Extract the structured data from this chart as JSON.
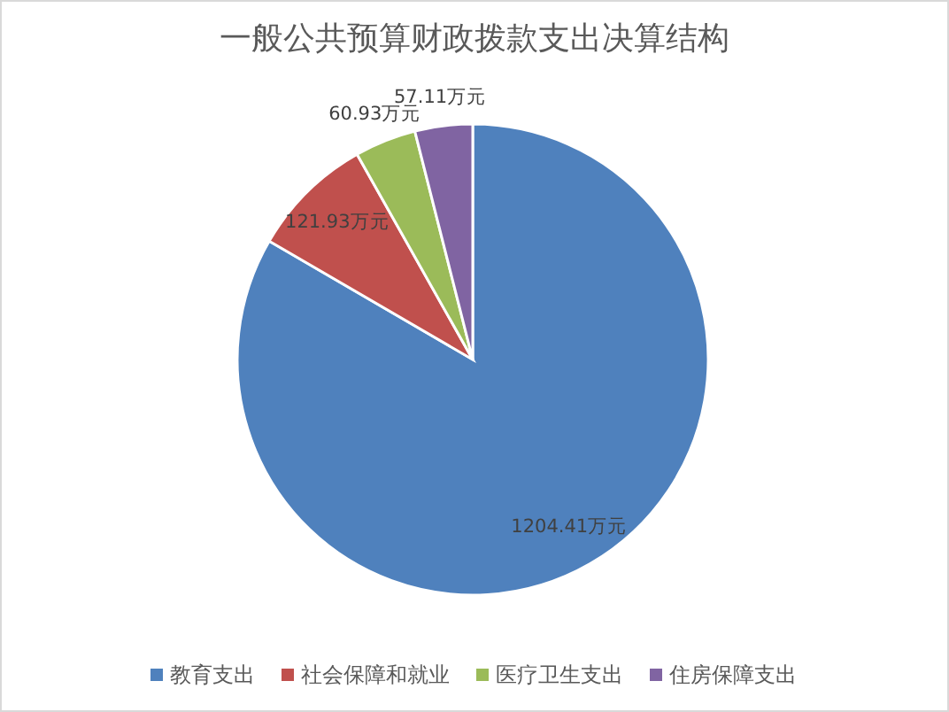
{
  "chart_data": {
    "type": "pie",
    "title": "一般公共预算财政拨款支出决算结构",
    "categories": [
      "教育支出",
      "社会保障和就业",
      "医疗卫生支出",
      "住房保障支出"
    ],
    "values": [
      1204.41,
      121.93,
      60.93,
      57.11
    ],
    "value_labels": [
      "1204.41万元",
      "121.93万元",
      "60.93万元",
      "57.11万元"
    ],
    "colors": [
      "#4f81bd",
      "#c0504d",
      "#9bbb59",
      "#8064a2"
    ],
    "legend": "bottom"
  }
}
